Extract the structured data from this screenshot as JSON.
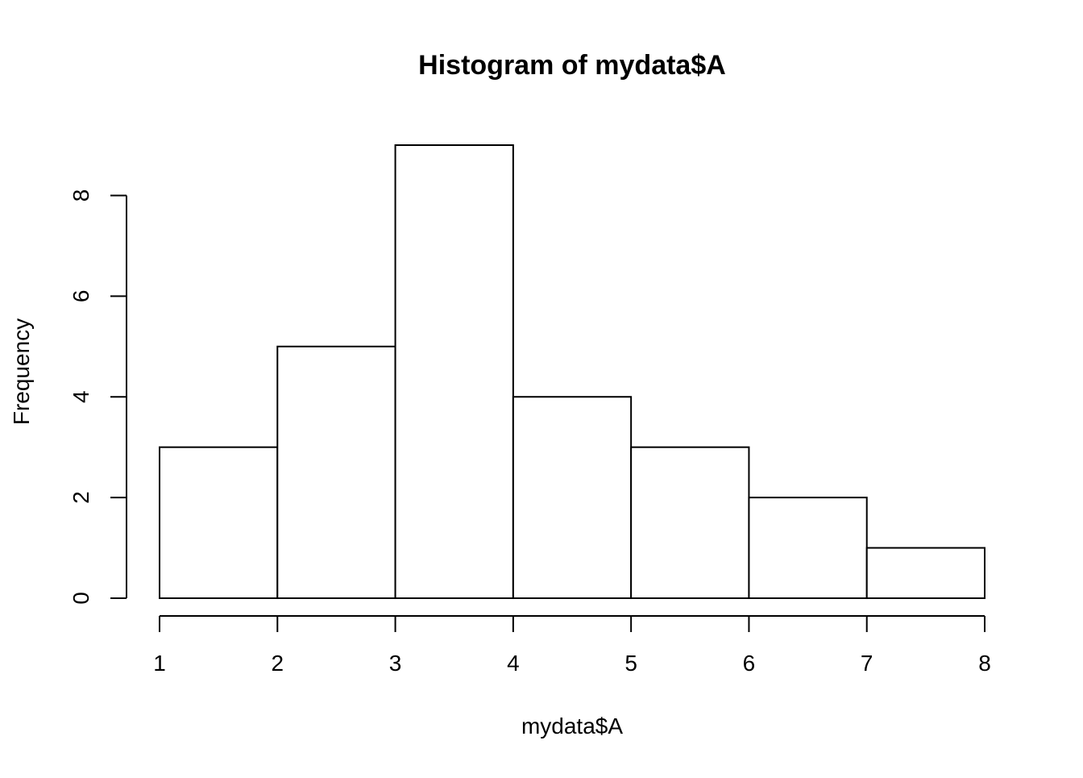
{
  "chart_data": {
    "type": "bar",
    "title": "Histogram of mydata$A",
    "xlabel": "mydata$A",
    "ylabel": "Frequency",
    "bins": [
      {
        "from": 1,
        "to": 2,
        "count": 3
      },
      {
        "from": 2,
        "to": 3,
        "count": 5
      },
      {
        "from": 3,
        "to": 4,
        "count": 9
      },
      {
        "from": 4,
        "to": 5,
        "count": 4
      },
      {
        "from": 5,
        "to": 6,
        "count": 3
      },
      {
        "from": 6,
        "to": 7,
        "count": 2
      },
      {
        "from": 7,
        "to": 8,
        "count": 1
      }
    ],
    "xlim": [
      1,
      8
    ],
    "ylim": [
      0,
      9
    ],
    "x_ticks": [
      1,
      2,
      3,
      4,
      5,
      6,
      7,
      8
    ],
    "y_ticks": [
      0,
      2,
      4,
      6,
      8
    ],
    "grid": false,
    "legend": "none"
  }
}
